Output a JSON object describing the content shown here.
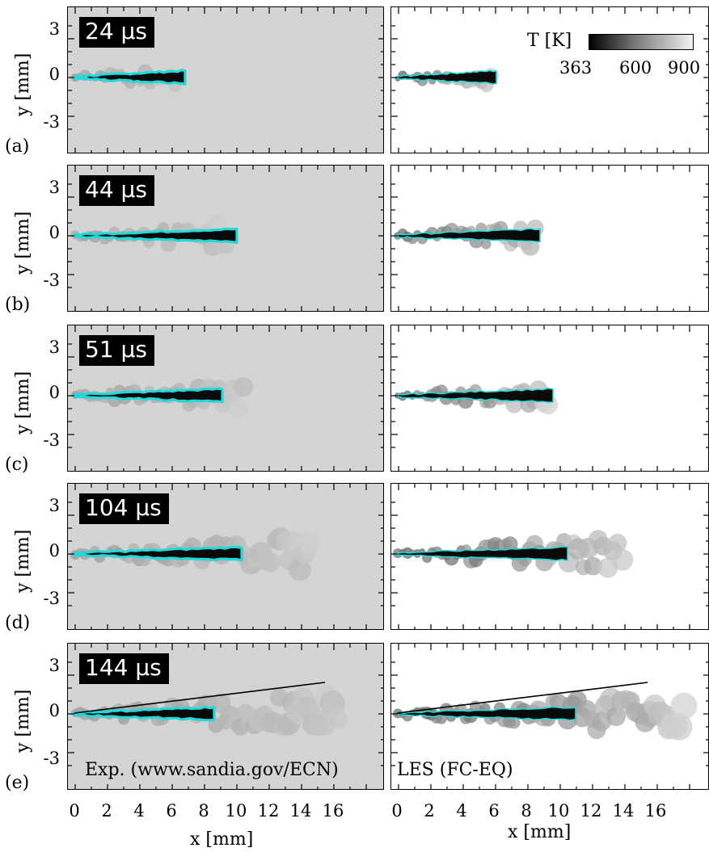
{
  "rows": [
    {
      "tag": "(a)",
      "time": "24 µs",
      "exp_x": [
        0,
        6.8
      ],
      "les_x": [
        0,
        6.1
      ]
    },
    {
      "tag": "(b)",
      "time": "44 µs",
      "exp_x": [
        0,
        10.0
      ],
      "les_x": [
        0,
        8.8
      ]
    },
    {
      "tag": "(c)",
      "time": "51 µs",
      "exp_x": [
        0,
        10.7
      ],
      "les_x": [
        0,
        9.6
      ]
    },
    {
      "tag": "(d)",
      "time": "104 µs",
      "exp_x": [
        0,
        14.8
      ],
      "les_x": [
        0,
        14.2
      ]
    },
    {
      "tag": "(e)",
      "time": "144 µs",
      "exp_x": [
        0,
        16.5
      ],
      "les_x": [
        0,
        18.0
      ]
    }
  ],
  "axes": {
    "ylabel": "y [mm]",
    "xlabel": "x [mm]",
    "yticks": [
      "3",
      "0",
      "-3"
    ],
    "xticks": [
      "0",
      "2",
      "4",
      "6",
      "8",
      "10",
      "12",
      "14",
      "16"
    ]
  },
  "sources": {
    "exp": "Exp. (www.sandia.gov/ECN)",
    "les": "LES (FC-EQ)"
  },
  "colorbar": {
    "title": "T [K]",
    "ticks": [
      "363",
      "600",
      "900"
    ]
  },
  "colors": {
    "liquid_contour": "#22d8d8",
    "liquid_core": "#0a0a0a",
    "exp_background": "#d4d4d4",
    "les_background": "#ffffff"
  }
}
